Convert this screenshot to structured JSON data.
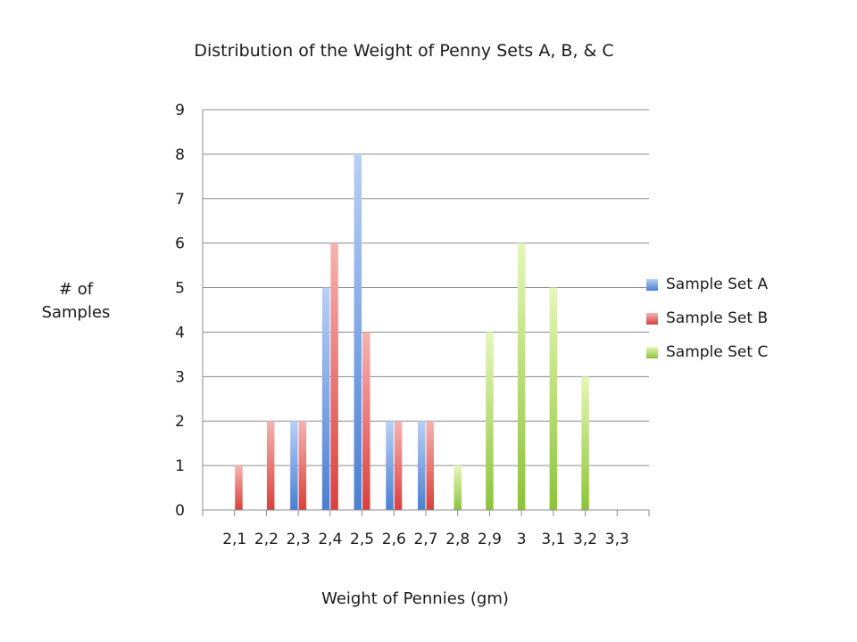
{
  "chart_data": {
    "type": "bar",
    "title": "Distribution of the Weight of Penny Sets A, B, & C",
    "xlabel": "Weight of Pennies (gm)",
    "ylabel": "# of Samples",
    "categories": [
      "2,1",
      "2,2",
      "2,3",
      "2,4",
      "2,5",
      "2,6",
      "2,7",
      "2,8",
      "2,9",
      "3",
      "3,1",
      "3,2",
      "3,3"
    ],
    "ylim": [
      0,
      9
    ],
    "yticks": [
      "0",
      "1",
      "2",
      "3",
      "4",
      "5",
      "6",
      "7",
      "8",
      "9"
    ],
    "grid": true,
    "legend_position": "right",
    "series": [
      {
        "name": "Sample Set A",
        "color": "#4a7fd4",
        "values": [
          0,
          0,
          2,
          5,
          8,
          2,
          2,
          0,
          0,
          0,
          0,
          0,
          0
        ]
      },
      {
        "name": "Sample Set B",
        "color": "#d9403e",
        "values": [
          1,
          2,
          2,
          6,
          4,
          2,
          2,
          0,
          0,
          0,
          0,
          0,
          0
        ]
      },
      {
        "name": "Sample Set C",
        "color": "#8cc43a",
        "values": [
          0,
          0,
          0,
          0,
          0,
          0,
          0,
          1,
          4,
          6,
          5,
          3,
          0
        ]
      }
    ]
  }
}
